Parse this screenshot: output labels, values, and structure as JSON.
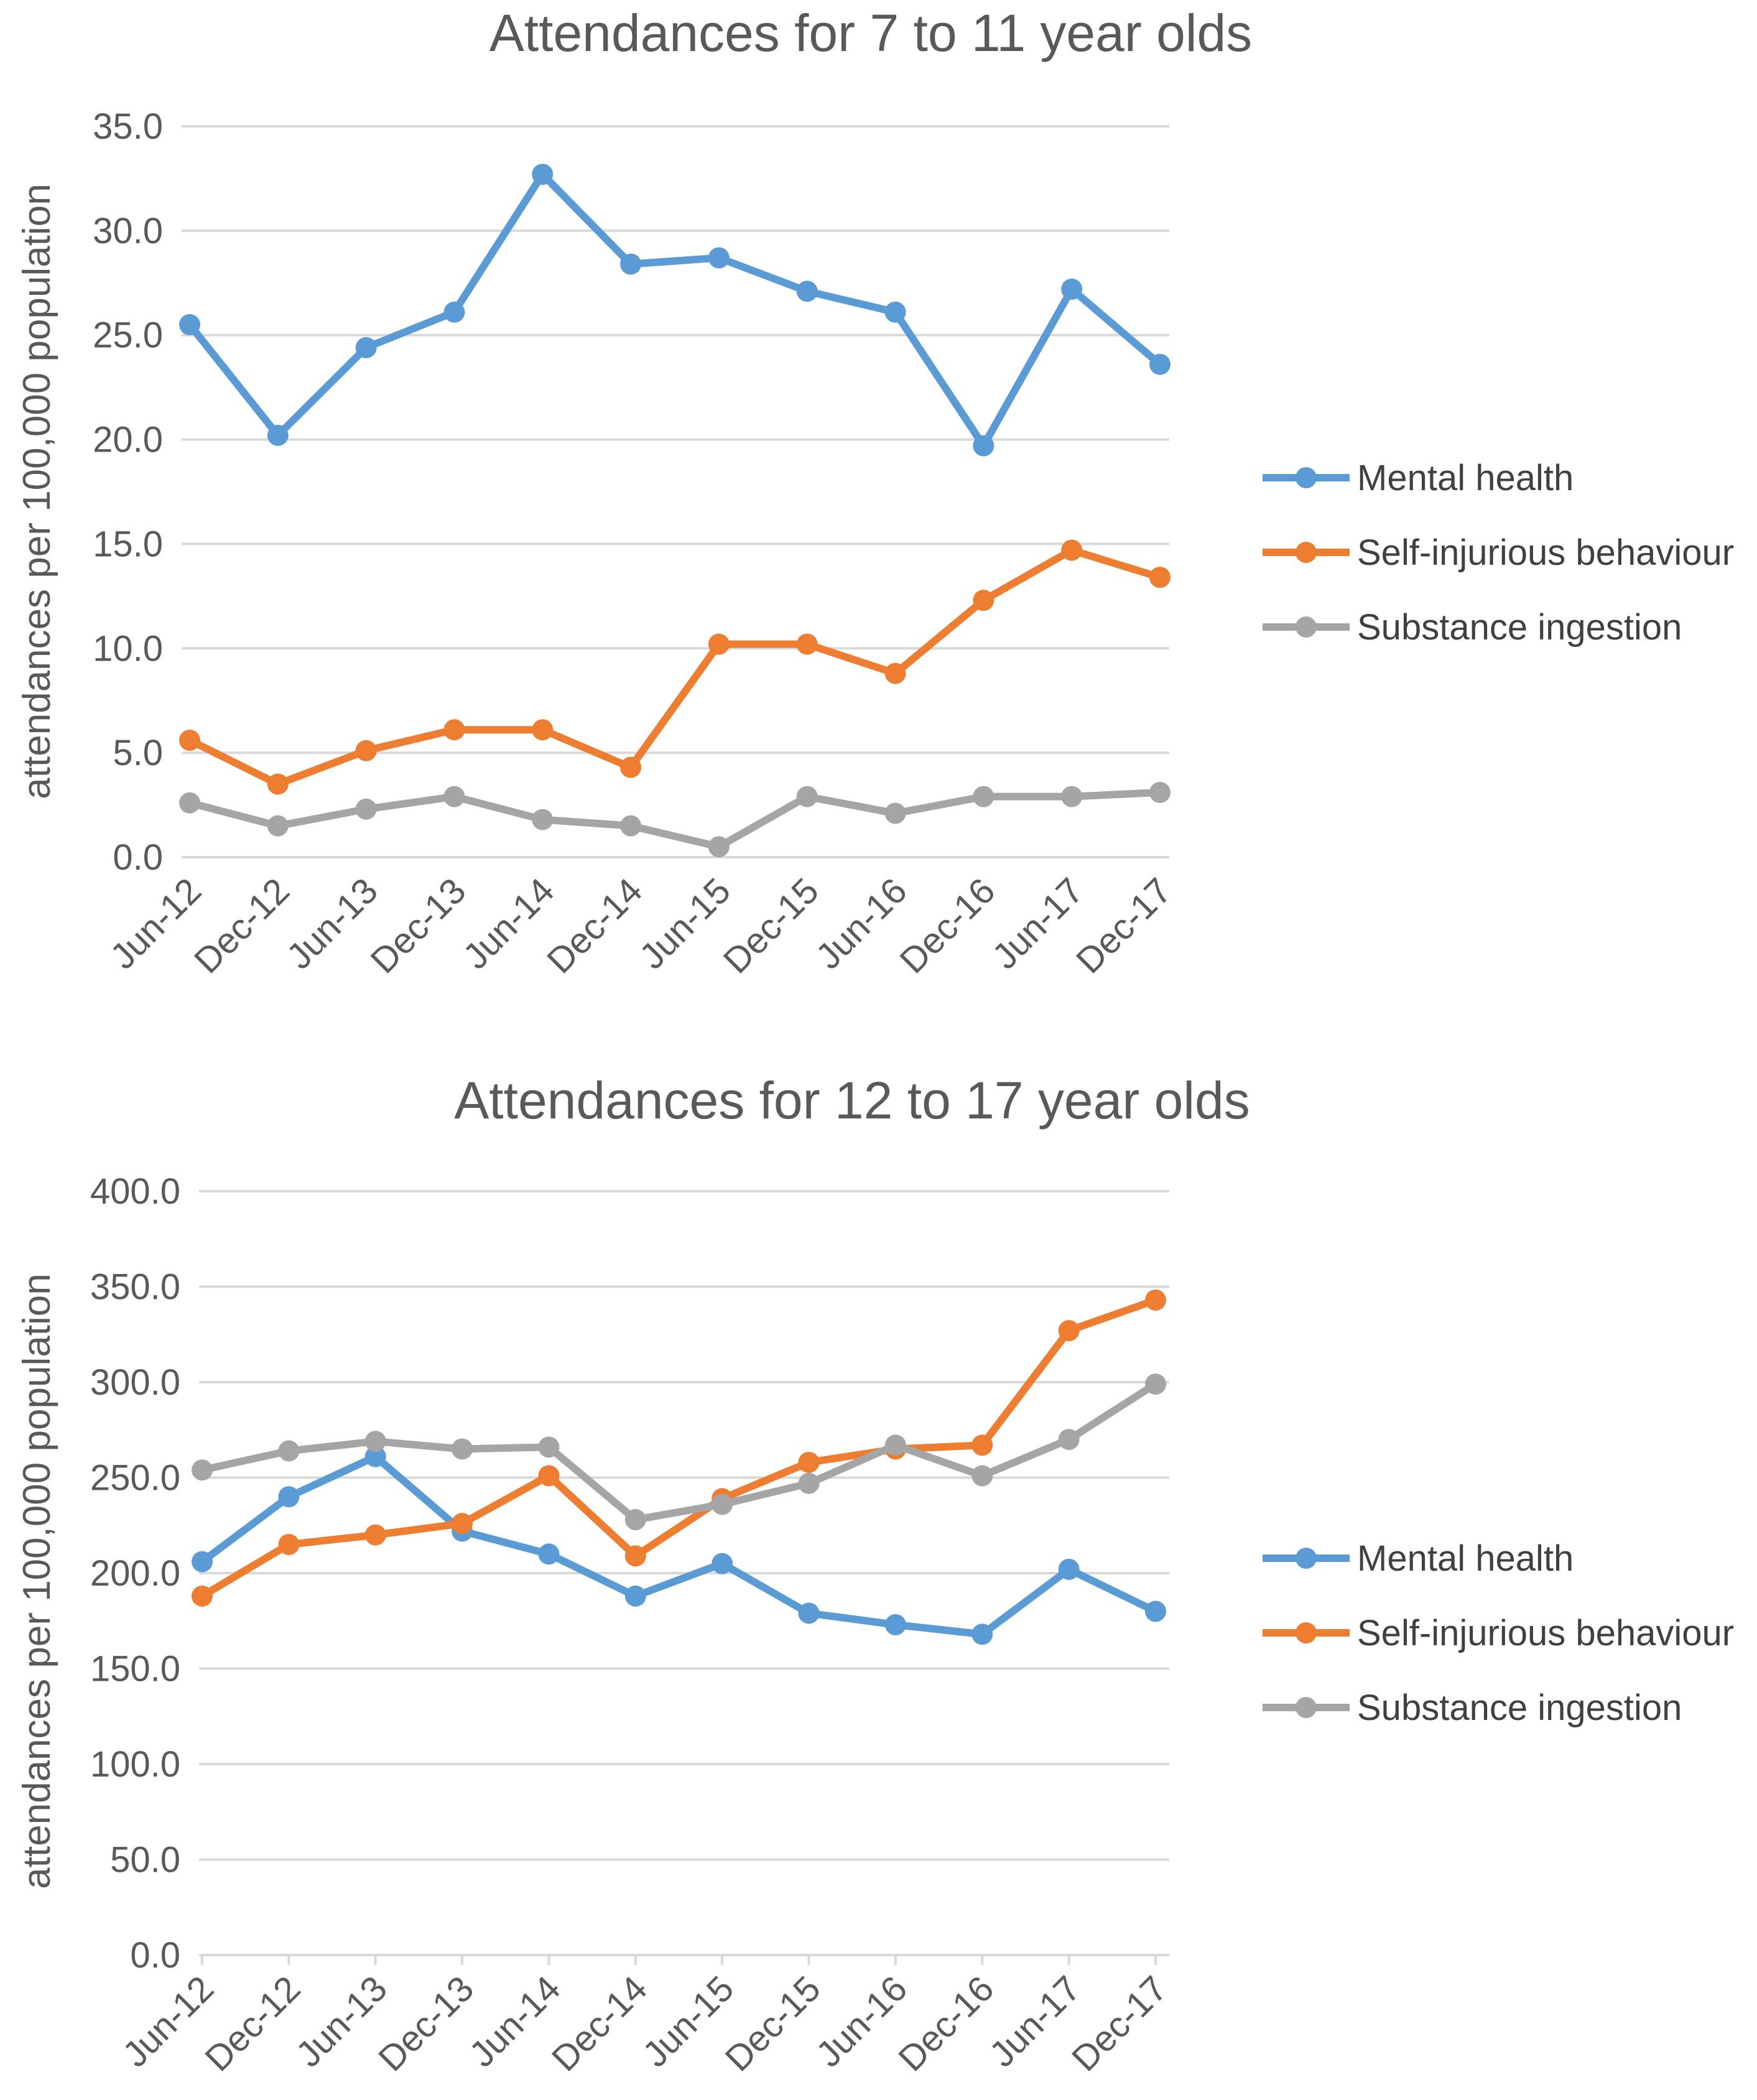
{
  "chart_data": [
    {
      "type": "line",
      "title": "Attendances for 7 to 11 year olds",
      "xlabel": "",
      "ylabel": "attendances per 100,000 population",
      "ylim": [
        0,
        35
      ],
      "y_ticks": [
        "0.0",
        "5.0",
        "10.0",
        "15.0",
        "20.0",
        "25.0",
        "30.0",
        "35.0"
      ],
      "grid": true,
      "legend_position": "right",
      "categories": [
        "Jun-12",
        "Dec-12",
        "Jun-13",
        "Dec-13",
        "Jun-14",
        "Dec-14",
        "Jun-15",
        "Dec-15",
        "Jun-16",
        "Dec-16",
        "Jun-17",
        "Dec-17"
      ],
      "series": [
        {
          "name": "Mental health",
          "color": "#5b9bd5",
          "values": [
            25.5,
            20.2,
            24.4,
            26.1,
            32.7,
            28.4,
            28.7,
            27.1,
            26.1,
            19.7,
            27.2,
            23.6
          ]
        },
        {
          "name": "Self-injurious behaviour",
          "color": "#ed7d31",
          "values": [
            5.6,
            3.5,
            5.1,
            6.1,
            6.1,
            4.3,
            10.2,
            10.2,
            8.8,
            12.3,
            14.7,
            13.4
          ]
        },
        {
          "name": "Substance ingestion",
          "color": "#a5a5a5",
          "values": [
            2.6,
            1.5,
            2.3,
            2.9,
            1.8,
            1.5,
            0.5,
            2.9,
            2.1,
            2.9,
            2.9,
            3.1
          ]
        }
      ]
    },
    {
      "type": "line",
      "title": "Attendances for 12 to 17 year olds",
      "xlabel": "",
      "ylabel": "attendances per 100,000 population",
      "ylim": [
        0,
        400
      ],
      "y_ticks": [
        "0.0",
        "50.0",
        "100.0",
        "150.0",
        "200.0",
        "250.0",
        "300.0",
        "350.0",
        "400.0"
      ],
      "grid": true,
      "legend_position": "right",
      "categories": [
        "Jun-12",
        "Dec-12",
        "Jun-13",
        "Dec-13",
        "Jun-14",
        "Dec-14",
        "Jun-15",
        "Dec-15",
        "Jun-16",
        "Dec-16",
        "Jun-17",
        "Dec-17"
      ],
      "series": [
        {
          "name": "Mental health",
          "color": "#5b9bd5",
          "values": [
            206,
            240,
            261,
            222,
            210,
            188,
            205,
            179,
            173,
            168,
            202,
            180
          ]
        },
        {
          "name": "Self-injurious behaviour",
          "color": "#ed7d31",
          "values": [
            188,
            215,
            220,
            226,
            251,
            209,
            239,
            258,
            265,
            267,
            327,
            343
          ]
        },
        {
          "name": "Substance ingestion",
          "color": "#a5a5a5",
          "values": [
            254,
            264,
            269,
            265,
            266,
            228,
            236,
            247,
            267,
            251,
            270,
            299
          ]
        }
      ]
    }
  ]
}
